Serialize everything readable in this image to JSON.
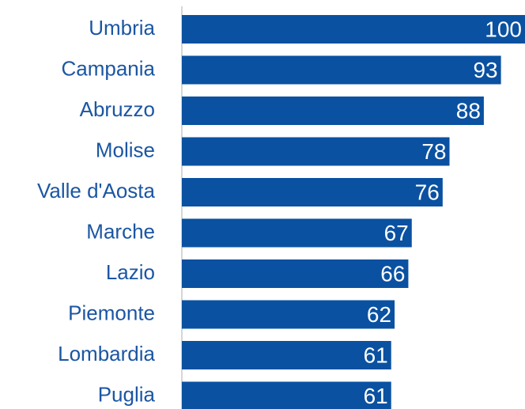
{
  "chart_data": {
    "type": "bar",
    "orientation": "horizontal",
    "categories": [
      "Umbria",
      "Campania",
      "Abruzzo",
      "Molise",
      "Valle d'Aosta",
      "Marche",
      "Lazio",
      "Piemonte",
      "Lombardia",
      "Puglia"
    ],
    "values": [
      100,
      93,
      88,
      78,
      76,
      67,
      66,
      62,
      61,
      61
    ],
    "color": "#0a51a1",
    "xlim": [
      0,
      100
    ]
  }
}
